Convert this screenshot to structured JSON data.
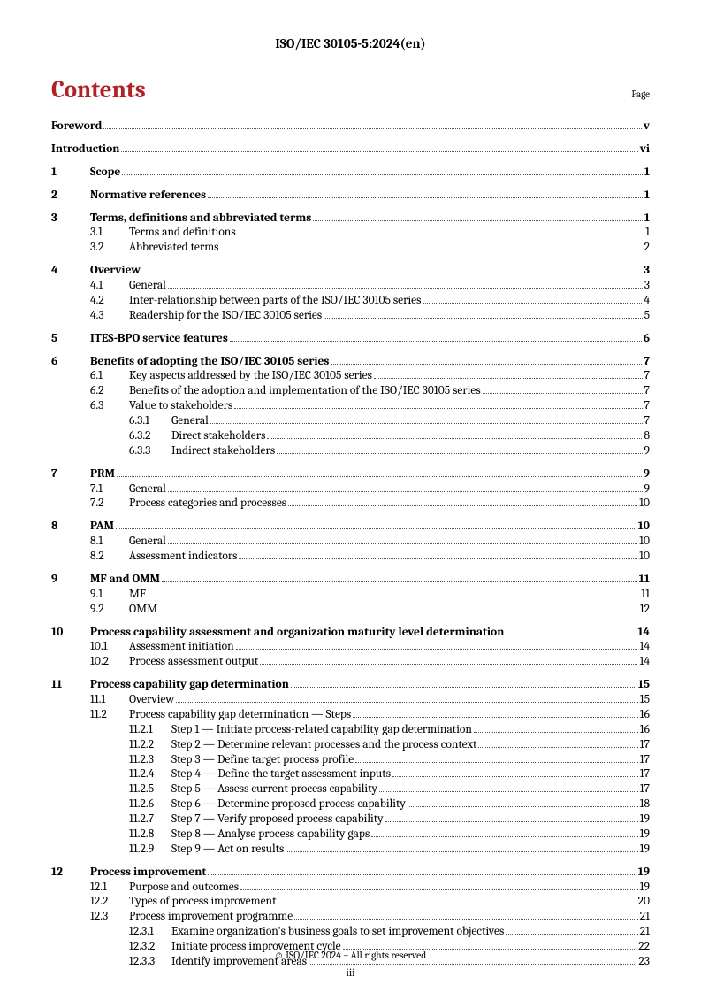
{
  "header": "ISO/IEC 30105-5:2024(en)",
  "contents_title": "Contents",
  "page_label": "Page",
  "footer": "© ISO/IEC 2024 – All rights reserved",
  "page_number": "iii",
  "entries": [
    {
      "level": 0,
      "num": "",
      "title": "Foreword",
      "page": "v",
      "bold": true
    },
    {
      "level": 0,
      "num": "",
      "title": "Introduction",
      "page": "vi",
      "bold": true
    },
    {
      "level": 0,
      "num": "1",
      "title": "Scope",
      "page": "1",
      "bold": true
    },
    {
      "level": 0,
      "num": "2",
      "title": "Normative references",
      "page": "1",
      "bold": true
    },
    {
      "level": 0,
      "num": "3",
      "title": "Terms, definitions and abbreviated terms",
      "page": "1",
      "bold": true
    },
    {
      "level": 1,
      "num": "3.1",
      "title": "Terms and definitions",
      "page": "1"
    },
    {
      "level": 1,
      "num": "3.2",
      "title": "Abbreviated terms",
      "page": "2"
    },
    {
      "level": 0,
      "num": "4",
      "title": "Overview",
      "page": "3",
      "bold": true
    },
    {
      "level": 1,
      "num": "4.1",
      "title": "General",
      "page": "3"
    },
    {
      "level": 1,
      "num": "4.2",
      "title": "Inter-relationship between parts of the ISO/IEC 30105 series",
      "page": "4"
    },
    {
      "level": 1,
      "num": "4.3",
      "title": "Readership for the ISO/IEC 30105 series",
      "page": "5"
    },
    {
      "level": 0,
      "num": "5",
      "title": "ITES-BPO service features",
      "page": "6",
      "bold": true
    },
    {
      "level": 0,
      "num": "6",
      "title": "Benefits of adopting the ISO/IEC 30105 series",
      "page": "7",
      "bold": true
    },
    {
      "level": 1,
      "num": "6.1",
      "title": "Key aspects addressed by the ISO/IEC 30105 series",
      "page": "7"
    },
    {
      "level": 1,
      "num": "6.2",
      "title": "Benefits of the adoption and implementation of the ISO/IEC 30105 series",
      "page": "7"
    },
    {
      "level": 1,
      "num": "6.3",
      "title": "Value to stakeholders",
      "page": "7"
    },
    {
      "level": 2,
      "num": "6.3.1",
      "title": "General",
      "page": "7"
    },
    {
      "level": 2,
      "num": "6.3.2",
      "title": "Direct stakeholders",
      "page": "8"
    },
    {
      "level": 2,
      "num": "6.3.3",
      "title": "Indirect stakeholders",
      "page": "9"
    },
    {
      "level": 0,
      "num": "7",
      "title": "PRM",
      "page": "9",
      "bold": true
    },
    {
      "level": 1,
      "num": "7.1",
      "title": "General",
      "page": "9"
    },
    {
      "level": 1,
      "num": "7.2",
      "title": "Process categories and processes",
      "page": "10"
    },
    {
      "level": 0,
      "num": "8",
      "title": "PAM",
      "page": "10",
      "bold": true
    },
    {
      "level": 1,
      "num": "8.1",
      "title": "General",
      "page": "10"
    },
    {
      "level": 1,
      "num": "8.2",
      "title": "Assessment indicators",
      "page": "10"
    },
    {
      "level": 0,
      "num": "9",
      "title": "MF and OMM",
      "page": "11",
      "bold": true
    },
    {
      "level": 1,
      "num": "9.1",
      "title": "MF",
      "page": "11"
    },
    {
      "level": 1,
      "num": "9.2",
      "title": "OMM",
      "page": "12"
    },
    {
      "level": 0,
      "num": "10",
      "title": "Process capability assessment and organization maturity level determination",
      "page": "14",
      "bold": true
    },
    {
      "level": 1,
      "num": "10.1",
      "title": "Assessment initiation",
      "page": "14"
    },
    {
      "level": 1,
      "num": "10.2",
      "title": "Process assessment output",
      "page": "14"
    },
    {
      "level": 0,
      "num": "11",
      "title": "Process capability gap determination",
      "page": "15",
      "bold": true
    },
    {
      "level": 1,
      "num": "11.1",
      "title": "Overview",
      "page": "15"
    },
    {
      "level": 1,
      "num": "11.2",
      "title": "Process capability gap determination — Steps",
      "page": "16"
    },
    {
      "level": 2,
      "num": "11.2.1",
      "title": "Step 1 — Initiate process-related capability gap determination",
      "page": "16"
    },
    {
      "level": 2,
      "num": "11.2.2",
      "title": "Step 2 — Determine relevant processes and the process context",
      "page": "17"
    },
    {
      "level": 2,
      "num": "11.2.3",
      "title": "Step 3 — Define target process profile",
      "page": "17"
    },
    {
      "level": 2,
      "num": "11.2.4",
      "title": "Step 4 — Define the target assessment inputs",
      "page": "17"
    },
    {
      "level": 2,
      "num": "11.2.5",
      "title": "Step 5 — Assess current process capability",
      "page": "17"
    },
    {
      "level": 2,
      "num": "11.2.6",
      "title": "Step 6 — Determine proposed process capability",
      "page": "18"
    },
    {
      "level": 2,
      "num": "11.2.7",
      "title": "Step 7 — Verify proposed process capability",
      "page": "19"
    },
    {
      "level": 2,
      "num": "11.2.8",
      "title": "Step 8 — Analyse process capability gaps",
      "page": "19"
    },
    {
      "level": 2,
      "num": "11.2.9",
      "title": "Step 9 — Act on results",
      "page": "19"
    },
    {
      "level": 0,
      "num": "12",
      "title": "Process improvement",
      "page": "19",
      "bold": true
    },
    {
      "level": 1,
      "num": "12.1",
      "title": "Purpose and outcomes",
      "page": "19"
    },
    {
      "level": 1,
      "num": "12.2",
      "title": "Types of process improvement",
      "page": "20"
    },
    {
      "level": 1,
      "num": "12.3",
      "title": "Process improvement programme",
      "page": "21"
    },
    {
      "level": 2,
      "num": "12.3.1",
      "title": "Examine organization's business goals to set improvement objectives",
      "page": "21"
    },
    {
      "level": 2,
      "num": "12.3.2",
      "title": "Initiate process improvement cycle",
      "page": "22"
    },
    {
      "level": 2,
      "num": "12.3.3",
      "title": "Identify improvement areas",
      "page": "23"
    }
  ]
}
